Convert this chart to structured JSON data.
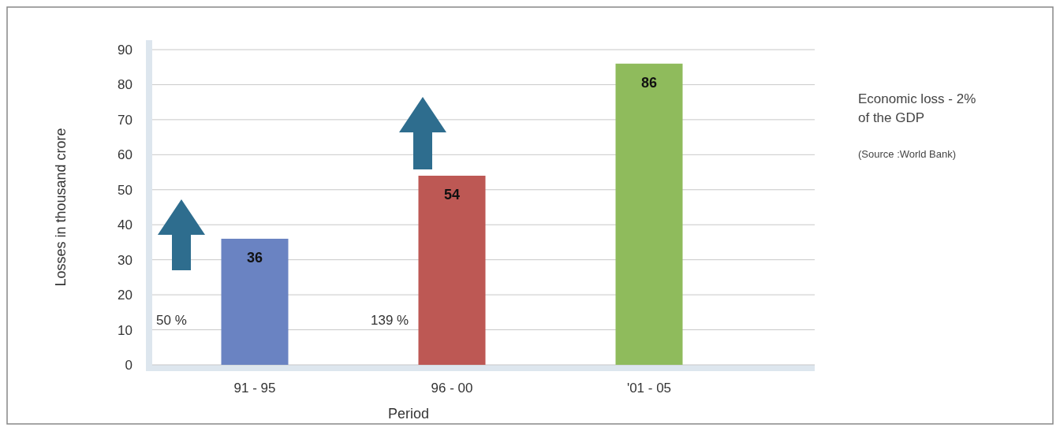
{
  "chart_data": {
    "type": "bar",
    "xlabel": "Period",
    "ylabel": "Losses in thousand crore",
    "categories": [
      "91 - 95",
      "96 - 00",
      "'01 - 05"
    ],
    "values": [
      36,
      54,
      86
    ],
    "colors": [
      "#6a83c2",
      "#bd5854",
      "#8fbb5c"
    ],
    "ylim": [
      0,
      90
    ],
    "yticks": [
      0,
      10,
      20,
      30,
      40,
      50,
      60,
      70,
      80,
      90
    ],
    "grid": "y",
    "data_labels": true,
    "annotations": [
      "50 %",
      "139 %",
      "Economic loss - 2% of the GDP",
      "(Source :World Bank)"
    ]
  }
}
